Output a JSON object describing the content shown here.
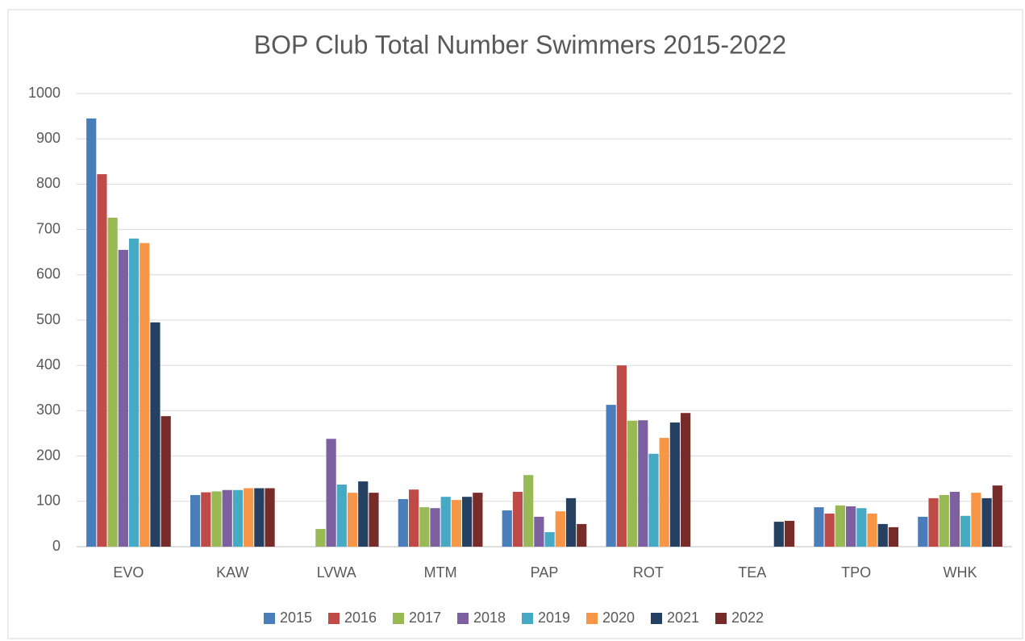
{
  "chart_data": {
    "type": "bar",
    "title": "BOP Club Total Number Swimmers 2015-2022",
    "categories": [
      "EVO",
      "KAW",
      "LVWA",
      "MTM",
      "PAP",
      "ROT",
      "TEA",
      "TPO",
      "WHK"
    ],
    "series": [
      {
        "name": "2015",
        "color": "#4a7ebb",
        "values": [
          945,
          114,
          null,
          105,
          80,
          313,
          null,
          87,
          66
        ]
      },
      {
        "name": "2016",
        "color": "#be4b48",
        "values": [
          822,
          120,
          null,
          126,
          121,
          400,
          null,
          73,
          107
        ]
      },
      {
        "name": "2017",
        "color": "#98b954",
        "values": [
          726,
          122,
          39,
          87,
          158,
          278,
          null,
          91,
          114
        ]
      },
      {
        "name": "2018",
        "color": "#7d60a0",
        "values": [
          655,
          125,
          238,
          85,
          66,
          279,
          null,
          89,
          121
        ]
      },
      {
        "name": "2019",
        "color": "#46aac5",
        "values": [
          680,
          125,
          137,
          110,
          32,
          205,
          null,
          85,
          68
        ]
      },
      {
        "name": "2020",
        "color": "#f79646",
        "values": [
          670,
          129,
          119,
          103,
          78,
          240,
          null,
          73,
          119
        ]
      },
      {
        "name": "2021",
        "color": "#254061",
        "values": [
          495,
          129,
          144,
          110,
          107,
          274,
          55,
          50,
          107
        ]
      },
      {
        "name": "2022",
        "color": "#772c2a",
        "values": [
          288,
          129,
          119,
          119,
          50,
          295,
          57,
          43,
          135
        ]
      }
    ],
    "ylim": [
      0,
      1000
    ],
    "yticks": [
      0,
      100,
      200,
      300,
      400,
      500,
      600,
      700,
      800,
      900,
      1000
    ],
    "grid": true,
    "legend": "bottom"
  }
}
